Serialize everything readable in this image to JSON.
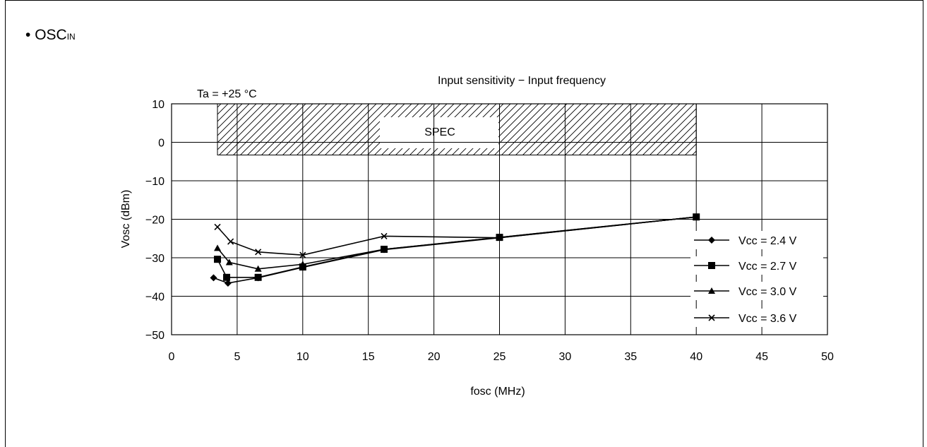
{
  "heading": {
    "bullet": "•",
    "main": "OSC",
    "sub": "IN"
  },
  "chart_data": {
    "type": "line",
    "title": "Input sensitivity − Input frequency",
    "annotation": "Ta = +25 °C",
    "xlabel": "fosc (MHz)",
    "ylabel": "Vosc (dBm)",
    "xlim": [
      0,
      50
    ],
    "ylim": [
      -50,
      10
    ],
    "xticks": [
      0,
      5,
      10,
      15,
      20,
      25,
      30,
      35,
      40,
      45,
      50
    ],
    "yticks": [
      10,
      0,
      -10,
      -20,
      -30,
      -40,
      -50
    ],
    "xtick_labels": [
      "0",
      "5",
      "10",
      "15",
      "20",
      "25",
      "30",
      "35",
      "40",
      "45",
      "50"
    ],
    "ytick_labels": [
      "10",
      "0",
      "−10",
      "−20",
      "−30",
      "−40",
      "−50"
    ],
    "grid": true,
    "legend_position": "right",
    "spec_region": {
      "label": "SPEC",
      "x": [
        3.5,
        40
      ],
      "y": [
        -3.3,
        10
      ]
    },
    "series": [
      {
        "name": "Vcc = 2.4 V",
        "marker": "diamond",
        "points": [
          [
            3.2,
            -35.2
          ],
          [
            4.3,
            -36.6
          ],
          [
            6.6,
            -35.2
          ],
          [
            10,
            -32.5
          ],
          [
            16.2,
            -27.9
          ],
          [
            25,
            -24.8
          ],
          [
            40,
            -19.4
          ]
        ]
      },
      {
        "name": "Vcc = 2.7 V",
        "marker": "square",
        "points": [
          [
            3.5,
            -30.4
          ],
          [
            4.2,
            -35.1
          ],
          [
            6.6,
            -35.1
          ],
          [
            10,
            -32.4
          ],
          [
            16.2,
            -27.8
          ],
          [
            25,
            -24.7
          ],
          [
            40,
            -19.4
          ]
        ]
      },
      {
        "name": "Vcc = 3.0 V",
        "marker": "triangle",
        "points": [
          [
            3.5,
            -27.5
          ],
          [
            4.4,
            -31.2
          ],
          [
            6.6,
            -32.9
          ],
          [
            10,
            -31.7
          ],
          [
            16.2,
            -27.8
          ],
          [
            25,
            -24.7
          ],
          [
            40,
            -19.4
          ]
        ]
      },
      {
        "name": "Vcc = 3.6 V",
        "marker": "cross",
        "points": [
          [
            3.5,
            -22.0
          ],
          [
            4.5,
            -25.8
          ],
          [
            6.6,
            -28.5
          ],
          [
            10,
            -29.3
          ],
          [
            16.2,
            -24.4
          ],
          [
            25,
            -24.8
          ],
          [
            40,
            -19.4
          ]
        ]
      }
    ]
  }
}
